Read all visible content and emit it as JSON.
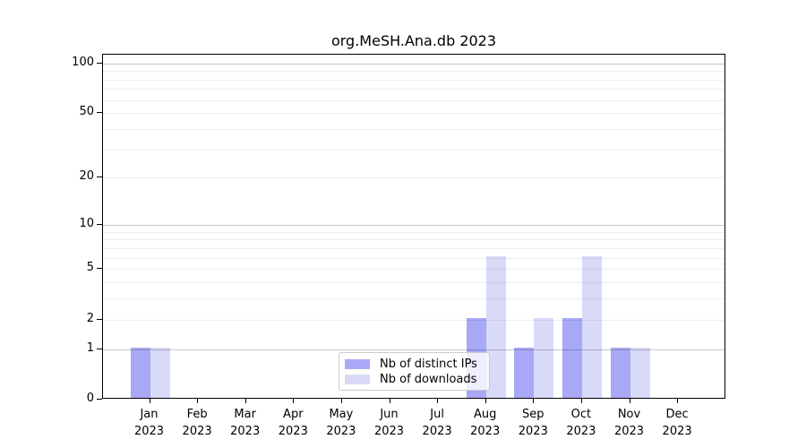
{
  "title": "org.MeSH.Ana.db 2023",
  "colors": {
    "ips_bar": "#a8a8f6",
    "downloads_bar": "#d9d9f8",
    "grid_major": "rgba(0,0,0,0.22)",
    "grid_minor": "rgba(0,0,0,0.07)",
    "axis": "#000000",
    "background": "#ffffff",
    "legend_border": "#cccccc"
  },
  "legend": {
    "items": [
      {
        "label": "Nb of distinct IPs"
      },
      {
        "label": "Nb of downloads"
      }
    ]
  },
  "chart_data": {
    "type": "bar",
    "title": "org.MeSH.Ana.db 2023",
    "categories": [
      {
        "month": "Jan",
        "year": "2023"
      },
      {
        "month": "Feb",
        "year": "2023"
      },
      {
        "month": "Mar",
        "year": "2023"
      },
      {
        "month": "Apr",
        "year": "2023"
      },
      {
        "month": "May",
        "year": "2023"
      },
      {
        "month": "Jun",
        "year": "2023"
      },
      {
        "month": "Jul",
        "year": "2023"
      },
      {
        "month": "Aug",
        "year": "2023"
      },
      {
        "month": "Sep",
        "year": "2023"
      },
      {
        "month": "Oct",
        "year": "2023"
      },
      {
        "month": "Nov",
        "year": "2023"
      },
      {
        "month": "Dec",
        "year": "2023"
      }
    ],
    "series": [
      {
        "name": "Nb of distinct IPs",
        "color": "#a8a8f6",
        "values": [
          1,
          0,
          0,
          0,
          0,
          0,
          0,
          2,
          1,
          2,
          1,
          0
        ]
      },
      {
        "name": "Nb of downloads",
        "color": "#d9d9f8",
        "values": [
          1,
          0,
          0,
          0,
          0,
          0,
          0,
          6,
          2,
          6,
          1,
          0
        ]
      }
    ],
    "xlabel": "",
    "ylabel": "",
    "yscale": "log1p",
    "ylim": [
      0,
      113
    ],
    "y_tick_values": [
      0,
      1,
      2,
      5,
      10,
      20,
      50,
      100
    ],
    "grid_major_values": [
      1,
      10,
      100
    ],
    "grid_minor_values": [
      2,
      3,
      4,
      5,
      6,
      7,
      8,
      9,
      20,
      30,
      40,
      50,
      60,
      70,
      80,
      90
    ],
    "grid": "on",
    "legend_position": "lower center"
  }
}
